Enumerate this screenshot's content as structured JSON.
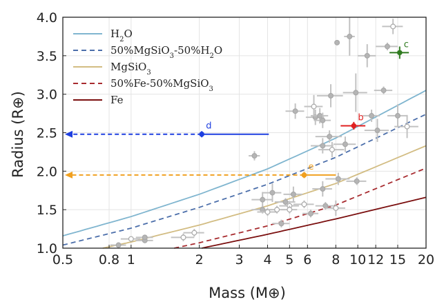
{
  "chart_data": {
    "type": "scatter",
    "xlabel": "Mass (M⊕)",
    "ylabel": "Radius (R⊕)",
    "xscale": "log",
    "xlim": [
      0.5,
      20
    ],
    "ylim": [
      1.0,
      4.0
    ],
    "xticks": [
      0.5,
      0.8,
      1,
      2,
      3,
      4,
      5,
      6,
      8,
      10,
      12,
      15,
      20
    ],
    "xtick_labels": [
      "0.5",
      "0.8",
      "1",
      "2",
      "3",
      "4",
      "5",
      "6",
      "8",
      "10",
      "12",
      "15",
      "20"
    ],
    "yticks": [
      1.0,
      1.5,
      2.0,
      2.5,
      3.0,
      3.5,
      4.0
    ],
    "ytick_labels": [
      "1.0",
      "1.5",
      "2.0",
      "2.5",
      "3.0",
      "3.5",
      "4.0"
    ],
    "legend_position": "top-left",
    "legend": [
      {
        "label": "H2O",
        "parts": [
          {
            "t": "H"
          },
          {
            "t": "2",
            "sub": true
          },
          {
            "t": "O"
          }
        ],
        "color": "#7fb5cf",
        "dash": false
      },
      {
        "label": "50%MgSiO3-50%H2O",
        "parts": [
          {
            "t": "50%MgSiO"
          },
          {
            "t": "3",
            "sub": true
          },
          {
            "t": "-50%H"
          },
          {
            "t": "2",
            "sub": true
          },
          {
            "t": "O"
          }
        ],
        "color": "#4b6eaa",
        "dash": true
      },
      {
        "label": "MgSiO3",
        "parts": [
          {
            "t": "MgSiO"
          },
          {
            "t": "3",
            "sub": true
          }
        ],
        "color": "#d2bc82",
        "dash": false
      },
      {
        "label": "50%Fe-50%MgSiO3",
        "parts": [
          {
            "t": "50%Fe-50%MgSiO"
          },
          {
            "t": "3",
            "sub": true
          }
        ],
        "color": "#a72a2e",
        "dash": true
      },
      {
        "label": "Fe",
        "parts": [
          {
            "t": "Fe"
          }
        ],
        "color": "#7a0e0e",
        "dash": false
      }
    ],
    "model_curves": [
      {
        "name": "H2O",
        "color": "#7fb5cf",
        "dash": false,
        "x": [
          0.5,
          1,
          2,
          4,
          8,
          20
        ],
        "y": [
          1.16,
          1.41,
          1.7,
          2.03,
          2.43,
          3.05
        ]
      },
      {
        "name": "50%MgSiO3-50%H2O",
        "color": "#4b6eaa",
        "dash": true,
        "x": [
          0.5,
          1,
          2,
          4,
          8,
          20
        ],
        "y": [
          1.04,
          1.26,
          1.53,
          1.83,
          2.18,
          2.74
        ]
      },
      {
        "name": "MgSiO3",
        "color": "#d2bc82",
        "dash": false,
        "x": [
          0.75,
          1,
          2,
          4,
          8,
          20
        ],
        "y": [
          1.0,
          1.08,
          1.3,
          1.55,
          1.84,
          2.33
        ]
      },
      {
        "name": "50%Fe-50%MgSiO3",
        "color": "#a72a2e",
        "dash": true,
        "x": [
          1.55,
          2,
          4,
          8,
          20
        ],
        "y": [
          1.0,
          1.07,
          1.29,
          1.56,
          2.04
        ]
      },
      {
        "name": "Fe",
        "color": "#7a0e0e",
        "dash": false,
        "x": [
          2.05,
          4,
          8,
          20
        ],
        "y": [
          1.0,
          1.18,
          1.38,
          1.66
        ]
      }
    ],
    "gray_points": [
      {
        "x": 0.88,
        "y": 1.04,
        "xerr": [
          0.07,
          0.07
        ],
        "yerr": [
          0.02,
          0.02
        ],
        "open": false
      },
      {
        "x": 1.0,
        "y": 1.12,
        "xerr": [
          0.1,
          0.1
        ],
        "yerr": [
          0.03,
          0.03
        ],
        "open": true
      },
      {
        "x": 1.15,
        "y": 1.1,
        "xerr": [
          0.1,
          0.1
        ],
        "yerr": [
          0.03,
          0.03
        ],
        "open": false
      },
      {
        "x": 1.15,
        "y": 1.14,
        "xerr": [
          0.1,
          0.1
        ],
        "yerr": [
          0.03,
          0.03
        ],
        "open": false
      },
      {
        "x": 1.7,
        "y": 1.14,
        "xerr": [
          0.2,
          0.2
        ],
        "yerr": [
          0.05,
          0.05
        ],
        "open": true
      },
      {
        "x": 1.9,
        "y": 1.2,
        "xerr": [
          0.2,
          0.2
        ],
        "yerr": [
          0.05,
          0.05
        ],
        "open": true
      },
      {
        "x": 3.5,
        "y": 2.2,
        "xerr": [
          0.2,
          0.2
        ],
        "yerr": [
          0.06,
          0.06
        ],
        "open": false
      },
      {
        "x": 3.8,
        "y": 1.63,
        "xerr": [
          0.4,
          0.4
        ],
        "yerr": [
          0.1,
          0.1
        ],
        "open": false
      },
      {
        "x": 3.8,
        "y": 1.5,
        "xerr": [
          0.4,
          0.4
        ],
        "yerr": [
          0.05,
          0.05
        ],
        "open": false
      },
      {
        "x": 4.0,
        "y": 1.47,
        "xerr": [
          0.4,
          0.4
        ],
        "yerr": [
          0.05,
          0.05
        ],
        "open": true
      },
      {
        "x": 4.2,
        "y": 1.72,
        "xerr": [
          0.4,
          0.4
        ],
        "yerr": [
          0.12,
          0.12
        ],
        "open": false
      },
      {
        "x": 4.4,
        "y": 1.5,
        "xerr": [
          0.4,
          0.4
        ],
        "yerr": [
          0.05,
          0.05
        ],
        "open": true
      },
      {
        "x": 4.6,
        "y": 1.32,
        "xerr": [
          0.4,
          0.4
        ],
        "yerr": [
          0.05,
          0.05
        ],
        "open": false
      },
      {
        "x": 4.8,
        "y": 1.6,
        "xerr": [
          0.5,
          0.5
        ],
        "yerr": [
          0.05,
          0.05
        ],
        "open": false
      },
      {
        "x": 5.0,
        "y": 1.55,
        "xerr": [
          0.5,
          0.5
        ],
        "yerr": [
          0.05,
          0.05
        ],
        "open": true
      },
      {
        "x": 5.2,
        "y": 1.7,
        "xerr": [
          0.5,
          0.5
        ],
        "yerr": [
          0.1,
          0.1
        ],
        "open": false
      },
      {
        "x": 5.0,
        "y": 1.5,
        "xerr": [
          0.4,
          0.4
        ],
        "yerr": [
          0.05,
          0.05
        ],
        "open": true
      },
      {
        "x": 5.3,
        "y": 2.78,
        "xerr": [
          0.5,
          0.5
        ],
        "yerr": [
          0.1,
          0.1
        ],
        "open": false
      },
      {
        "x": 5.8,
        "y": 1.57,
        "xerr": [
          0.6,
          0.6
        ],
        "yerr": [
          0.05,
          0.05
        ],
        "open": true
      },
      {
        "x": 6.2,
        "y": 1.45,
        "xerr": [
          0.5,
          0.5
        ],
        "yerr": [
          0.05,
          0.05
        ],
        "open": false
      },
      {
        "x": 6.4,
        "y": 2.84,
        "xerr": [
          0.6,
          0.6
        ],
        "yerr": [
          0.15,
          0.15
        ],
        "open": true
      },
      {
        "x": 6.5,
        "y": 2.7,
        "xerr": [
          0.6,
          0.6
        ],
        "yerr": [
          0.1,
          0.1
        ],
        "open": false
      },
      {
        "x": 6.8,
        "y": 2.72,
        "xerr": [
          0.6,
          0.6
        ],
        "yerr": [
          0.1,
          0.1
        ],
        "open": false
      },
      {
        "x": 7.0,
        "y": 2.66,
        "xerr": [
          0.6,
          0.6
        ],
        "yerr": [
          0.1,
          0.1
        ],
        "open": false
      },
      {
        "x": 7.0,
        "y": 2.33,
        "xerr": [
          0.8,
          0.8
        ],
        "yerr": [
          0.1,
          0.1
        ],
        "open": false
      },
      {
        "x": 7.0,
        "y": 1.77,
        "xerr": [
          0.7,
          0.7
        ],
        "yerr": [
          0.1,
          0.1
        ],
        "open": false
      },
      {
        "x": 7.2,
        "y": 1.55,
        "xerr": [
          0.7,
          0.7
        ],
        "yerr": [
          0.05,
          0.05
        ],
        "open": false
      },
      {
        "x": 7.5,
        "y": 2.45,
        "xerr": [
          1.0,
          1.0
        ],
        "yerr": [
          0.08,
          0.08
        ],
        "open": false
      },
      {
        "x": 7.6,
        "y": 2.98,
        "xerr": [
          1.0,
          1.0
        ],
        "yerr": [
          0.15,
          0.15
        ],
        "open": false
      },
      {
        "x": 7.7,
        "y": 2.28,
        "xerr": [
          1.0,
          1.0
        ],
        "yerr": [
          0.1,
          0.1
        ],
        "open": true
      },
      {
        "x": 8.0,
        "y": 1.52,
        "xerr": [
          0.8,
          0.8
        ],
        "yerr": [
          0.1,
          0.1
        ],
        "open": true
      },
      {
        "x": 8.1,
        "y": 3.67,
        "xerr": [
          0.2,
          0.2
        ],
        "yerr": [
          0.03,
          0.03
        ],
        "open": false
      },
      {
        "x": 8.2,
        "y": 1.9,
        "xerr": [
          1.0,
          1.0
        ],
        "yerr": [
          0.08,
          0.08
        ],
        "open": false
      },
      {
        "x": 8.8,
        "y": 2.35,
        "xerr": [
          1.0,
          1.0
        ],
        "yerr": [
          0.1,
          0.1
        ],
        "open": false
      },
      {
        "x": 9.2,
        "y": 3.75,
        "xerr": [
          0.5,
          0.5
        ],
        "yerr": [
          0.25,
          0.25
        ],
        "open": false
      },
      {
        "x": 9.8,
        "y": 3.02,
        "xerr": [
          1.2,
          1.2
        ],
        "yerr": [
          0.25,
          0.25
        ],
        "open": false
      },
      {
        "x": 9.9,
        "y": 1.87,
        "xerr": [
          1.0,
          1.0
        ],
        "yerr": [
          0.05,
          0.05
        ],
        "open": false
      },
      {
        "x": 11.0,
        "y": 3.5,
        "xerr": [
          1.0,
          1.0
        ],
        "yerr": [
          0.15,
          0.15
        ],
        "open": false
      },
      {
        "x": 11.5,
        "y": 2.72,
        "xerr": [
          1.0,
          1.0
        ],
        "yerr": [
          0.08,
          0.08
        ],
        "open": false
      },
      {
        "x": 12.2,
        "y": 2.53,
        "xerr": [
          1.5,
          1.5
        ],
        "yerr": [
          0.15,
          0.15
        ],
        "open": false
      },
      {
        "x": 13.0,
        "y": 3.05,
        "xerr": [
          1.2,
          1.2
        ],
        "yerr": [
          0.05,
          0.05
        ],
        "open": false
      },
      {
        "x": 13.5,
        "y": 3.62,
        "xerr": [
          1.5,
          1.5
        ],
        "yerr": [
          0.05,
          0.05
        ],
        "open": false
      },
      {
        "x": 14.3,
        "y": 3.88,
        "xerr": [
          1.5,
          1.5
        ],
        "yerr": [
          0.1,
          0.1
        ],
        "open": true
      },
      {
        "x": 15.0,
        "y": 2.72,
        "xerr": [
          1.5,
          1.5
        ],
        "yerr": [
          0.15,
          0.15
        ],
        "open": false
      },
      {
        "x": 16.5,
        "y": 2.58,
        "xerr": [
          2.0,
          2.0
        ],
        "yerr": [
          0.15,
          0.15
        ],
        "open": true
      }
    ],
    "highlight_points": [
      {
        "label": "b",
        "x": 9.6,
        "y": 2.59,
        "xerr": [
          1.2,
          1.2
        ],
        "yerr": [
          0.05,
          0.05
        ],
        "color": "#e02020",
        "upper_limit_arrow": false
      },
      {
        "label": "c",
        "x": 15.3,
        "y": 3.54,
        "xerr": [
          1.5,
          1.5
        ],
        "yerr": [
          0.08,
          0.08
        ],
        "color": "#2f7a1f",
        "upper_limit_arrow": false
      },
      {
        "label": "d",
        "x": 2.05,
        "y": 2.48,
        "xerr": [
          0,
          2.0
        ],
        "yerr": [
          0.04,
          0.04
        ],
        "color": "#1e3fe0",
        "upper_limit_arrow": true
      },
      {
        "label": "e",
        "x": 5.8,
        "y": 1.95,
        "xerr": [
          0,
          2.2
        ],
        "yerr": [
          0.04,
          0.04
        ],
        "color": "#f0a020",
        "upper_limit_arrow": true
      }
    ]
  }
}
